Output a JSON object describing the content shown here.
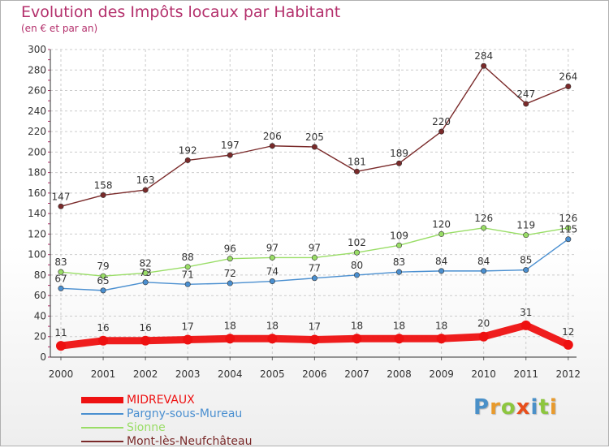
{
  "title": "Evolution des Impôts locaux par Habitant",
  "subtitle": "(en € et par an)",
  "logo": {
    "letters": [
      "P",
      "r",
      "o",
      "x",
      "i",
      "t",
      "i"
    ],
    "colors": [
      "#4a90c8",
      "#e89a2c",
      "#8dc63f",
      "#e84e1b",
      "#4a90c8",
      "#8dc63f",
      "#e89a2c"
    ]
  },
  "chart_data": {
    "type": "line",
    "title": "Evolution des Impôts locaux par Habitant",
    "subtitle": "(en € et par an)",
    "xlabel": "",
    "ylabel": "",
    "ylim": [
      0,
      300
    ],
    "yticks": [
      0,
      20,
      40,
      60,
      80,
      100,
      120,
      140,
      160,
      180,
      200,
      220,
      240,
      260,
      280,
      300
    ],
    "grid": true,
    "legend_position": "bottom-left",
    "categories": [
      "2000",
      "2001",
      "2002",
      "2003",
      "2004",
      "2005",
      "2006",
      "2007",
      "2008",
      "2009",
      "2010",
      "2011",
      "2012"
    ],
    "series": [
      {
        "name": "MIDREVAUX",
        "color": "#ee1111",
        "values": [
          11,
          16,
          16,
          17,
          18,
          18,
          17,
          18,
          18,
          18,
          20,
          31,
          12
        ]
      },
      {
        "name": "Pargny-sous-Mureau",
        "color": "#4a8fd0",
        "values": [
          67,
          65,
          73,
          71,
          72,
          74,
          77,
          80,
          83,
          84,
          84,
          85,
          115
        ]
      },
      {
        "name": "Sionne",
        "color": "#99dd66",
        "values": [
          83,
          79,
          82,
          88,
          96,
          97,
          97,
          102,
          109,
          120,
          126,
          119,
          126
        ]
      },
      {
        "name": "Mont-lès-Neufchâteau",
        "color": "#7a2a2a",
        "values": [
          147,
          158,
          163,
          192,
          197,
          206,
          205,
          181,
          189,
          220,
          284,
          247,
          264
        ]
      }
    ]
  }
}
